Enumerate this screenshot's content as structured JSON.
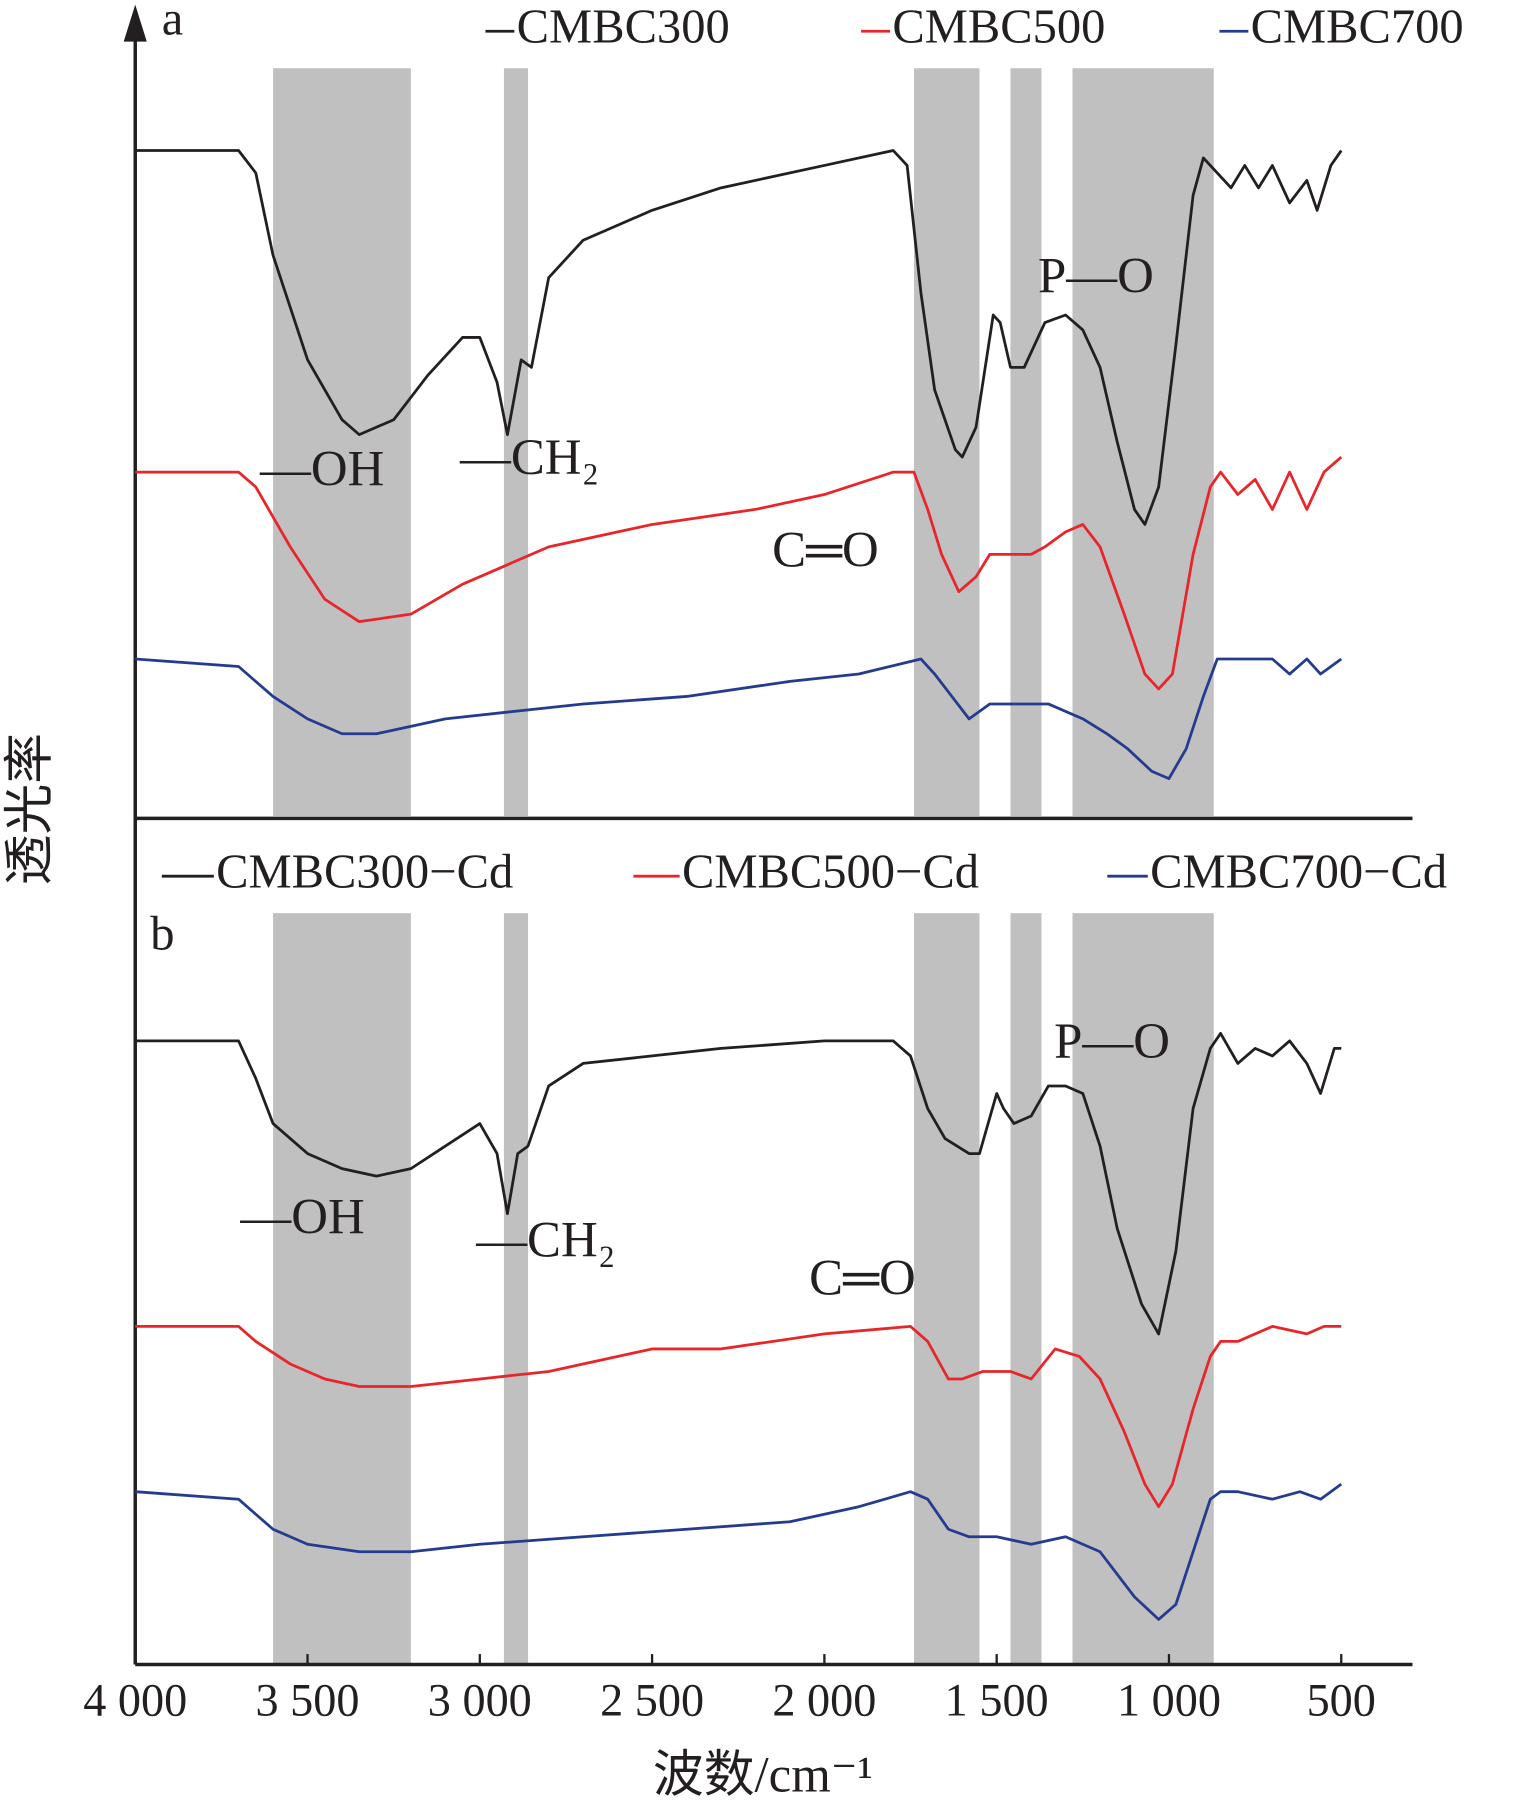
{
  "chart_data": [
    {
      "type": "line",
      "panel_label": "a",
      "xlim": [
        4000,
        300
      ],
      "ylim": [
        0,
        100
      ],
      "bands": [
        [
          3600,
          3200
        ],
        [
          2930,
          2860
        ],
        [
          1740,
          1550
        ],
        [
          1460,
          1370
        ],
        [
          1280,
          870
        ]
      ],
      "band_color": "#c0c0c0",
      "ylabel": "透光率",
      "annotations": [
        "—OH",
        "—CH₂",
        "C═O",
        "P—O"
      ],
      "series": [
        {
          "name": "CMBC300",
          "color": "#231f20",
          "x": [
            4000,
            3700,
            3650,
            3600,
            3500,
            3400,
            3350,
            3250,
            3150,
            3050,
            3000,
            2950,
            2920,
            2880,
            2850,
            2800,
            2700,
            2500,
            2300,
            2000,
            1800,
            1760,
            1720,
            1680,
            1620,
            1600,
            1560,
            1510,
            1490,
            1460,
            1420,
            1360,
            1300,
            1250,
            1200,
            1150,
            1100,
            1070,
            1030,
            980,
            930,
            900,
            860,
            820,
            780,
            740,
            700,
            650,
            600,
            570,
            530,
            500
          ],
          "values": [
            89,
            89,
            86,
            75,
            61,
            53,
            51,
            53,
            59,
            64,
            64,
            58,
            51,
            61,
            60,
            72,
            77,
            81,
            84,
            87,
            89,
            87,
            70,
            57,
            49,
            48,
            52,
            67,
            66,
            60,
            60,
            66,
            67,
            65,
            60,
            50,
            41,
            39,
            44,
            63,
            83,
            88,
            86,
            84,
            87,
            84,
            87,
            82,
            85,
            81,
            87,
            89
          ]
        },
        {
          "name": "CMBC500",
          "color": "#e8262a",
          "x": [
            4000,
            3700,
            3650,
            3550,
            3450,
            3350,
            3200,
            3050,
            2950,
            2900,
            2800,
            2500,
            2200,
            2000,
            1800,
            1740,
            1700,
            1660,
            1610,
            1560,
            1520,
            1460,
            1400,
            1360,
            1300,
            1250,
            1200,
            1130,
            1070,
            1030,
            990,
            930,
            880,
            850,
            800,
            750,
            700,
            650,
            600,
            550,
            500
          ],
          "values": [
            46,
            46,
            44,
            36,
            29,
            26,
            27,
            31,
            33,
            34,
            36,
            39,
            41,
            43,
            46,
            46,
            41,
            35,
            30,
            32,
            35,
            35,
            35,
            36,
            38,
            39,
            36,
            27,
            19,
            17,
            19,
            35,
            44,
            46,
            43,
            45,
            41,
            46,
            41,
            46,
            48
          ]
        },
        {
          "name": "CMBC700",
          "color": "#243b8f",
          "x": [
            4000,
            3700,
            3600,
            3500,
            3400,
            3300,
            3100,
            2900,
            2700,
            2400,
            2100,
            1900,
            1720,
            1680,
            1630,
            1580,
            1520,
            1460,
            1350,
            1250,
            1180,
            1120,
            1050,
            1000,
            950,
            900,
            860,
            800,
            700,
            650,
            600,
            560,
            500
          ],
          "values": [
            21,
            20,
            16,
            13,
            11,
            11,
            13,
            14,
            15,
            16,
            18,
            19,
            21,
            19,
            16,
            13,
            15,
            15,
            15,
            13,
            11,
            9,
            6,
            5,
            9,
            16,
            21,
            21,
            21,
            19,
            21,
            19,
            21
          ]
        }
      ]
    },
    {
      "type": "line",
      "panel_label": "b",
      "xlim": [
        4000,
        300
      ],
      "ylim": [
        0,
        100
      ],
      "bands": [
        [
          3600,
          3200
        ],
        [
          2930,
          2860
        ],
        [
          1740,
          1550
        ],
        [
          1460,
          1370
        ],
        [
          1280,
          870
        ]
      ],
      "band_color": "#c0c0c0",
      "xlabel": "波数/cm⁻¹",
      "xticks": [
        {
          "value": 4000,
          "label": "4 000"
        },
        {
          "value": 3500,
          "label": "3 500"
        },
        {
          "value": 3000,
          "label": "3 000"
        },
        {
          "value": 2500,
          "label": "2 500"
        },
        {
          "value": 2000,
          "label": "2 000"
        },
        {
          "value": 1500,
          "label": "1 500"
        },
        {
          "value": 1000,
          "label": "1 000"
        },
        500
      ],
      "annotations": [
        "—OH",
        "—CH₂",
        "C═O",
        "P—O"
      ],
      "series": [
        {
          "name": "CMBC300−Cd",
          "color": "#231f20",
          "x": [
            4000,
            3700,
            3650,
            3600,
            3500,
            3400,
            3300,
            3200,
            3100,
            3000,
            2950,
            2920,
            2890,
            2860,
            2800,
            2700,
            2500,
            2300,
            2000,
            1800,
            1750,
            1700,
            1650,
            1580,
            1550,
            1500,
            1480,
            1450,
            1400,
            1350,
            1300,
            1250,
            1200,
            1150,
            1080,
            1030,
            980,
            930,
            880,
            850,
            800,
            750,
            700,
            650,
            600,
            560,
            520,
            500
          ],
          "values": [
            83,
            83,
            78,
            72,
            68,
            66,
            65,
            66,
            69,
            72,
            68,
            60,
            68,
            69,
            77,
            80,
            81,
            82,
            83,
            83,
            81,
            74,
            70,
            68,
            68,
            76,
            74,
            72,
            73,
            77,
            77,
            76,
            69,
            58,
            48,
            44,
            55,
            74,
            82,
            84,
            80,
            82,
            81,
            83,
            80,
            76,
            82,
            82
          ]
        },
        {
          "name": "CMBC500−Cd",
          "color": "#e8262a",
          "x": [
            4000,
            3700,
            3650,
            3550,
            3450,
            3350,
            3200,
            3000,
            2800,
            2500,
            2300,
            2000,
            1750,
            1700,
            1640,
            1600,
            1540,
            1460,
            1400,
            1330,
            1260,
            1200,
            1130,
            1070,
            1030,
            990,
            930,
            880,
            850,
            800,
            700,
            600,
            550,
            500
          ],
          "values": [
            45,
            45,
            43,
            40,
            38,
            37,
            37,
            38,
            39,
            42,
            42,
            44,
            45,
            43,
            38,
            38,
            39,
            39,
            38,
            42,
            41,
            38,
            31,
            24,
            21,
            24,
            34,
            41,
            43,
            43,
            45,
            44,
            45,
            45
          ]
        },
        {
          "name": "CMBC700−Cd",
          "color": "#243b8f",
          "x": [
            4000,
            3700,
            3600,
            3500,
            3350,
            3200,
            3000,
            2700,
            2400,
            2100,
            1900,
            1750,
            1700,
            1640,
            1580,
            1500,
            1400,
            1300,
            1200,
            1100,
            1030,
            980,
            930,
            880,
            850,
            800,
            700,
            620,
            560,
            500
          ],
          "values": [
            23,
            22,
            18,
            16,
            15,
            15,
            16,
            17,
            18,
            19,
            21,
            23,
            22,
            18,
            17,
            17,
            16,
            17,
            15,
            9,
            6,
            8,
            15,
            22,
            23,
            23,
            22,
            23,
            22,
            24
          ]
        }
      ]
    }
  ]
}
